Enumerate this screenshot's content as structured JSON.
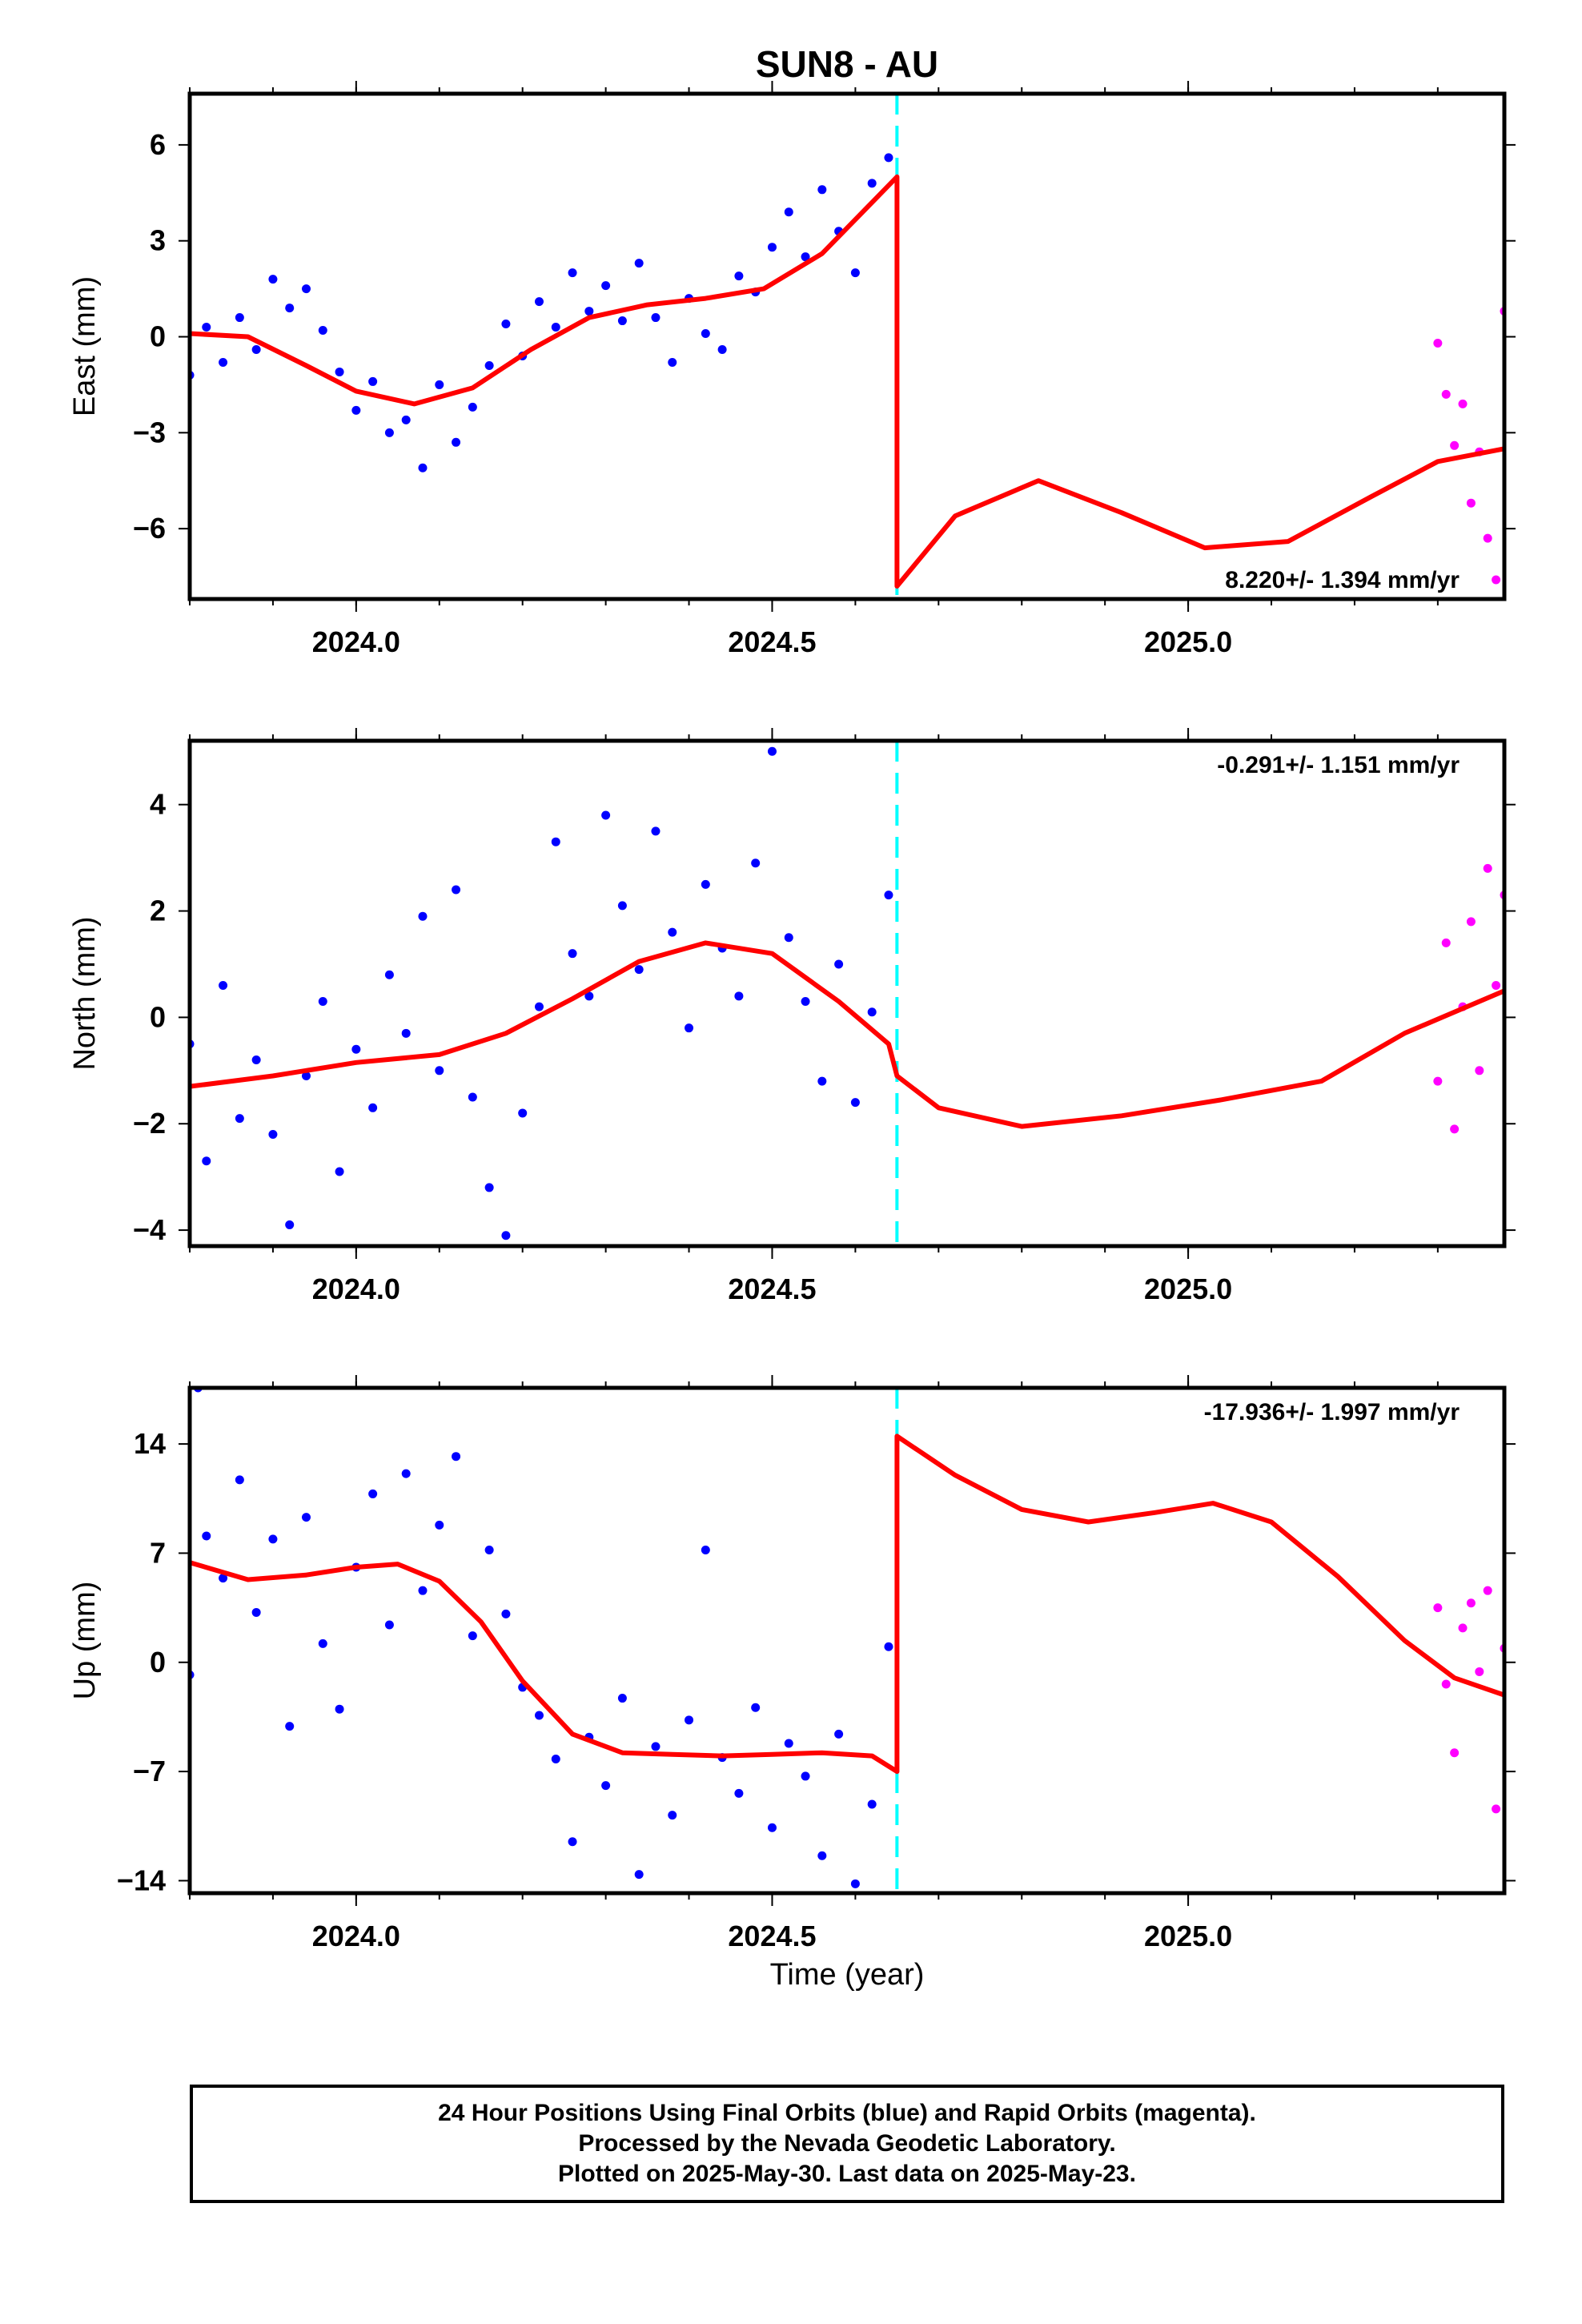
{
  "title": "SUN8 - AU",
  "xlabel": "Time (year)",
  "colors": {
    "final_orbits": "#0000ff",
    "rapid_orbits": "#ff00ff",
    "model": "#ff0000",
    "offset_line": "#00ffff",
    "frame": "#000000"
  },
  "footer": {
    "line1": "24 Hour Positions Using Final Orbits (blue) and Rapid Orbits (magenta).",
    "line2": "Processed by the Nevada Geodetic Laboratory.",
    "line3": "Plotted on 2025-May-30. Last data on 2025-May-23."
  },
  "chart_data": [
    {
      "type": "scatter",
      "component": "East",
      "ylabel": "East (mm)",
      "xlim": [
        2023.8,
        2025.38
      ],
      "ylim": [
        -8.2,
        7.6
      ],
      "xticks": [
        2024.0,
        2024.5,
        2025.0
      ],
      "xticklabels": [
        "2024.0",
        "2024.5",
        "2025.0"
      ],
      "yticks": [
        -6,
        -3,
        0,
        3,
        6
      ],
      "yticklabels": [
        "-6",
        "-3",
        "0",
        "3",
        "6"
      ],
      "rate_label": "8.220+/- 1.394 mm/yr",
      "rate_position": "bottom-right",
      "offset_epoch": 2024.65,
      "series": [
        {
          "role": "final",
          "x": [
            2023.8,
            2023.82,
            2023.84,
            2023.86,
            2023.88,
            2023.9,
            2023.92,
            2023.94,
            2023.96,
            2023.98,
            2024.0,
            2024.02,
            2024.04,
            2024.06,
            2024.08,
            2024.1,
            2024.12,
            2024.14,
            2024.16,
            2024.18,
            2024.2,
            2024.22,
            2024.24,
            2024.26,
            2024.28,
            2024.3,
            2024.32,
            2024.34,
            2024.36,
            2024.38,
            2024.4,
            2024.42,
            2024.44,
            2024.46,
            2024.48,
            2024.5,
            2024.52,
            2024.54,
            2024.56,
            2024.58,
            2024.6,
            2024.62,
            2024.64
          ],
          "y": [
            -1.2,
            0.3,
            -0.8,
            0.6,
            -0.4,
            1.8,
            0.9,
            1.5,
            0.2,
            -1.1,
            -2.3,
            -1.4,
            -3.0,
            -2.6,
            -4.1,
            -1.5,
            -3.3,
            -2.2,
            -0.9,
            0.4,
            -0.6,
            1.1,
            0.3,
            2.0,
            0.8,
            1.6,
            0.5,
            2.3,
            0.6,
            -0.8,
            1.2,
            0.1,
            -0.4,
            1.9,
            1.4,
            2.8,
            3.9,
            2.5,
            4.6,
            3.3,
            2.0,
            4.8,
            5.6
          ]
        },
        {
          "role": "rapid",
          "x": [
            2025.3,
            2025.31,
            2025.32,
            2025.33,
            2025.34,
            2025.35,
            2025.36,
            2025.37,
            2025.38
          ],
          "y": [
            -0.2,
            -1.8,
            -3.4,
            -2.1,
            -5.2,
            -3.6,
            -6.3,
            -7.6,
            0.8
          ]
        },
        {
          "role": "model",
          "x": [
            2023.8,
            2023.87,
            2023.94,
            2024.0,
            2024.07,
            2024.14,
            2024.21,
            2024.28,
            2024.35,
            2024.42,
            2024.49,
            2024.56,
            2024.62,
            2024.65,
            2024.65,
            2024.72,
            2024.82,
            2024.92,
            2025.02,
            2025.12,
            2025.22,
            2025.3,
            2025.38
          ],
          "y": [
            0.1,
            0.0,
            -0.9,
            -1.7,
            -2.1,
            -1.6,
            -0.4,
            0.6,
            1.0,
            1.2,
            1.5,
            2.6,
            4.2,
            5.0,
            -7.8,
            -5.6,
            -4.5,
            -5.5,
            -6.6,
            -6.4,
            -5.0,
            -3.9,
            -3.5
          ]
        }
      ]
    },
    {
      "type": "scatter",
      "component": "North",
      "ylabel": "North (mm)",
      "xlim": [
        2023.8,
        2025.38
      ],
      "ylim": [
        -4.3,
        5.2
      ],
      "xticks": [
        2024.0,
        2024.5,
        2025.0
      ],
      "xticklabels": [
        "2024.0",
        "2024.5",
        "2025.0"
      ],
      "yticks": [
        -4,
        -2,
        0,
        2,
        4
      ],
      "yticklabels": [
        "-4",
        "-2",
        "0",
        "2",
        "4"
      ],
      "rate_label": "-0.291+/- 1.151 mm/yr",
      "rate_position": "top-right",
      "offset_epoch": 2024.65,
      "series": [
        {
          "role": "final",
          "x": [
            2023.8,
            2023.82,
            2023.84,
            2023.86,
            2023.88,
            2023.9,
            2023.92,
            2023.94,
            2023.96,
            2023.98,
            2024.0,
            2024.02,
            2024.04,
            2024.06,
            2024.08,
            2024.1,
            2024.12,
            2024.14,
            2024.16,
            2024.18,
            2024.2,
            2024.22,
            2024.24,
            2024.26,
            2024.28,
            2024.3,
            2024.32,
            2024.34,
            2024.36,
            2024.38,
            2024.4,
            2024.42,
            2024.44,
            2024.46,
            2024.48,
            2024.5,
            2024.52,
            2024.54,
            2024.56,
            2024.58,
            2024.6,
            2024.62,
            2024.64
          ],
          "y": [
            -0.5,
            -2.7,
            0.6,
            -1.9,
            -0.8,
            -2.2,
            -3.9,
            -1.1,
            0.3,
            -2.9,
            -0.6,
            -1.7,
            0.8,
            -0.3,
            1.9,
            -1.0,
            2.4,
            -1.5,
            -3.2,
            -4.1,
            -1.8,
            0.2,
            3.3,
            1.2,
            0.4,
            3.8,
            2.1,
            0.9,
            3.5,
            1.6,
            -0.2,
            2.5,
            1.3,
            0.4,
            2.9,
            5.0,
            1.5,
            0.3,
            -1.2,
            1.0,
            -1.6,
            0.1,
            2.3
          ]
        },
        {
          "role": "rapid",
          "x": [
            2025.3,
            2025.31,
            2025.32,
            2025.33,
            2025.34,
            2025.35,
            2025.36,
            2025.37,
            2025.38
          ],
          "y": [
            -1.2,
            1.4,
            -2.1,
            0.2,
            1.8,
            -1.0,
            2.8,
            0.6,
            2.3
          ]
        },
        {
          "role": "model",
          "x": [
            2023.8,
            2023.9,
            2024.0,
            2024.1,
            2024.18,
            2024.26,
            2024.34,
            2024.42,
            2024.5,
            2024.58,
            2024.64,
            2024.65,
            2024.7,
            2024.8,
            2024.92,
            2025.04,
            2025.16,
            2025.26,
            2025.38
          ],
          "y": [
            -1.3,
            -1.1,
            -0.85,
            -0.7,
            -0.3,
            0.35,
            1.05,
            1.4,
            1.2,
            0.3,
            -0.5,
            -1.1,
            -1.7,
            -2.05,
            -1.85,
            -1.55,
            -1.2,
            -0.3,
            0.5
          ]
        }
      ]
    },
    {
      "type": "scatter",
      "component": "Up",
      "ylabel": "Up (mm)",
      "xlim": [
        2023.8,
        2025.38
      ],
      "ylim": [
        -14.8,
        17.6
      ],
      "xticks": [
        2024.0,
        2024.5,
        2025.0
      ],
      "xticklabels": [
        "2024.0",
        "2024.5",
        "2025.0"
      ],
      "yticks": [
        -14,
        -7,
        0,
        7,
        14
      ],
      "yticklabels": [
        "-14",
        "-7",
        "0",
        "7",
        "14"
      ],
      "rate_label": "-17.936+/- 1.997 mm/yr",
      "rate_position": "top-right",
      "offset_epoch": 2024.65,
      "series": [
        {
          "role": "final",
          "x": [
            2023.8,
            2023.81,
            2023.82,
            2023.84,
            2023.86,
            2023.88,
            2023.9,
            2023.92,
            2023.94,
            2023.96,
            2023.98,
            2024.0,
            2024.02,
            2024.04,
            2024.06,
            2024.08,
            2024.1,
            2024.12,
            2024.14,
            2024.16,
            2024.18,
            2024.2,
            2024.22,
            2024.24,
            2024.26,
            2024.28,
            2024.3,
            2024.32,
            2024.34,
            2024.36,
            2024.38,
            2024.4,
            2024.42,
            2024.44,
            2024.46,
            2024.48,
            2024.5,
            2024.52,
            2024.54,
            2024.56,
            2024.58,
            2024.6,
            2024.62,
            2024.64
          ],
          "y": [
            -0.8,
            17.6,
            8.1,
            5.4,
            11.7,
            3.2,
            7.9,
            -4.1,
            9.3,
            1.2,
            -3.0,
            6.1,
            10.8,
            2.4,
            12.1,
            4.6,
            8.8,
            13.2,
            1.7,
            7.2,
            3.1,
            -1.6,
            -3.4,
            -6.2,
            -11.5,
            -4.8,
            -7.9,
            -2.3,
            -13.6,
            -5.4,
            -9.8,
            -3.7,
            7.2,
            -6.1,
            -8.4,
            -2.9,
            -10.6,
            -5.2,
            -7.3,
            -12.4,
            -4.6,
            -14.2,
            -9.1,
            1.0
          ]
        },
        {
          "role": "rapid",
          "x": [
            2025.3,
            2025.31,
            2025.32,
            2025.33,
            2025.34,
            2025.35,
            2025.36,
            2025.37,
            2025.38
          ],
          "y": [
            3.5,
            -1.4,
            -5.8,
            2.2,
            3.8,
            -0.6,
            4.6,
            -9.4,
            0.9
          ]
        },
        {
          "role": "model",
          "x": [
            2023.8,
            2023.87,
            2023.94,
            2024.0,
            2024.05,
            2024.1,
            2024.15,
            2024.2,
            2024.26,
            2024.32,
            2024.38,
            2024.44,
            2024.5,
            2024.56,
            2024.62,
            2024.65,
            2024.65,
            2024.72,
            2024.8,
            2024.88,
            2024.96,
            2025.03,
            2025.1,
            2025.18,
            2025.26,
            2025.32,
            2025.38
          ],
          "y": [
            6.4,
            5.3,
            5.6,
            6.1,
            6.3,
            5.2,
            2.6,
            -1.2,
            -4.6,
            -5.8,
            -5.9,
            -6.0,
            -5.9,
            -5.8,
            -6.0,
            -7.0,
            14.5,
            12.0,
            9.8,
            9.0,
            9.6,
            10.2,
            9.0,
            5.5,
            1.4,
            -1.0,
            -2.1
          ]
        }
      ]
    }
  ]
}
